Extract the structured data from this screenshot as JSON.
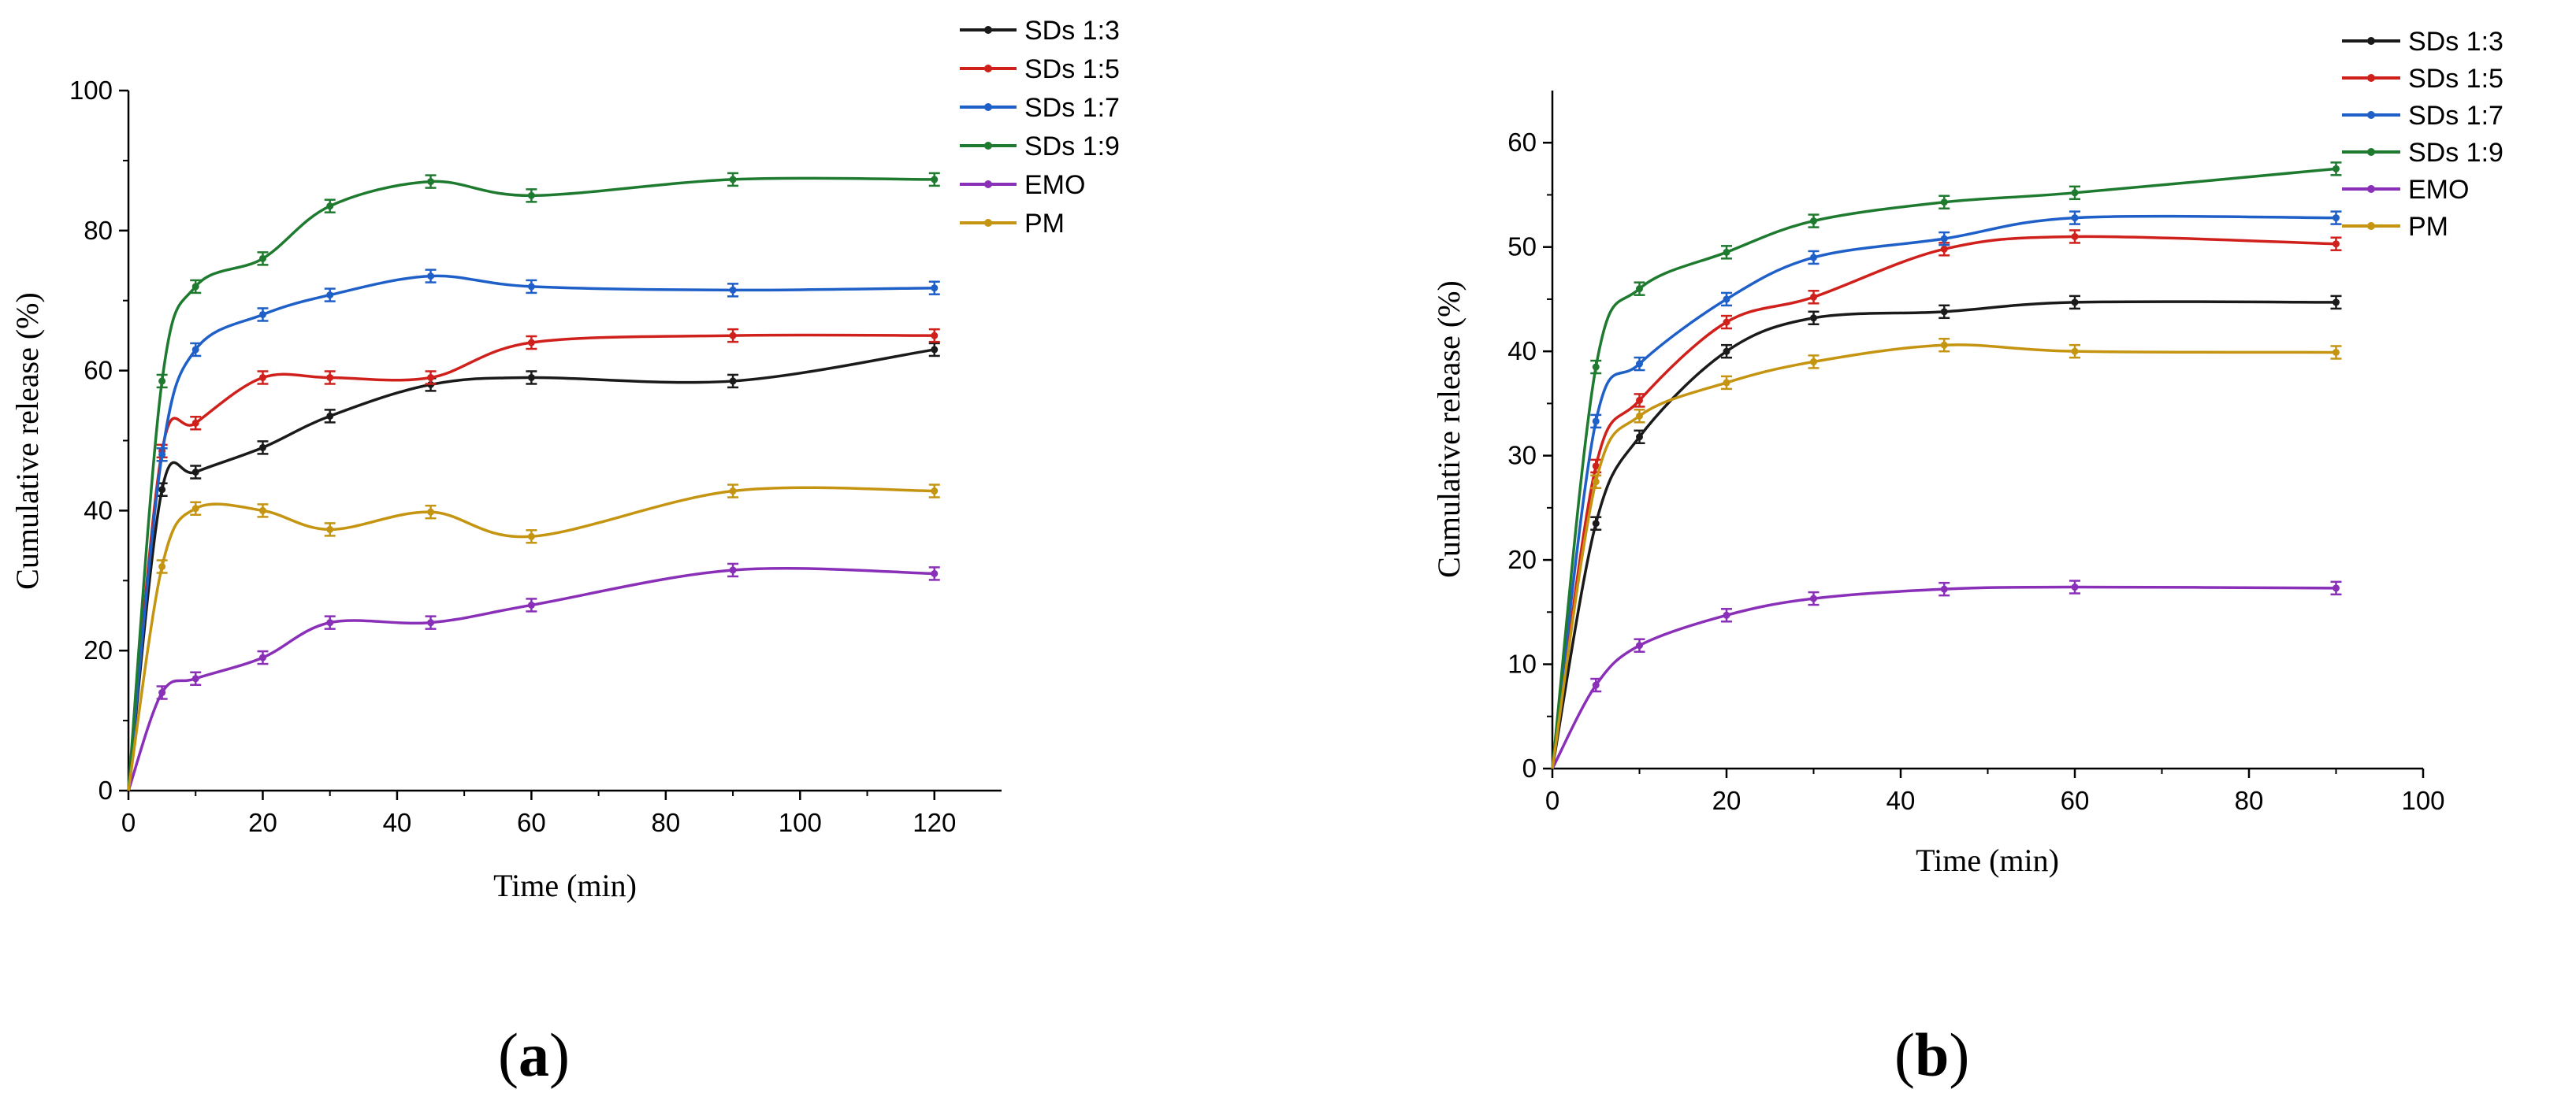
{
  "figure": {
    "colors": {
      "SDs 1:3": "#1a1a1a",
      "SDs 1:5": "#d0201c",
      "SDs 1:7": "#1f5fc8",
      "SDs 1:9": "#1e7a2e",
      "EMO": "#8a2fb8",
      "PM": "#c59512"
    }
  },
  "chart_data": [
    {
      "type": "line",
      "panel_label_open": "(",
      "panel_label_letter": "a",
      "panel_label_close": ")",
      "xlabel": "Time (min)",
      "ylabel": "Cumulative release (%)",
      "xlim": [
        0,
        130
      ],
      "ylim": [
        0,
        100
      ],
      "xticks": [
        0,
        20,
        40,
        60,
        80,
        100,
        120
      ],
      "yticks": [
        0,
        20,
        40,
        60,
        80,
        100
      ],
      "legend_position": "top-right",
      "x": [
        0,
        5,
        10,
        20,
        30,
        45,
        60,
        90,
        120
      ],
      "series": [
        {
          "name": "SDs 1:3",
          "values": [
            0,
            43,
            45.5,
            49,
            53.5,
            58,
            59,
            58.5,
            63
          ]
        },
        {
          "name": "SDs 1:5",
          "values": [
            0,
            48.5,
            52.5,
            59,
            59,
            59,
            64,
            65,
            65
          ]
        },
        {
          "name": "SDs 1:7",
          "values": [
            0,
            48,
            63,
            68,
            70.8,
            73.5,
            72,
            71.5,
            71.8
          ]
        },
        {
          "name": "SDs 1:9",
          "values": [
            0,
            58.5,
            72,
            76,
            83.5,
            87,
            85,
            87.3,
            87.3
          ]
        },
        {
          "name": "EMO",
          "values": [
            0,
            14,
            16,
            19,
            24,
            24,
            26.5,
            31.5,
            31
          ]
        },
        {
          "name": "PM",
          "values": [
            0,
            32,
            40.3,
            40,
            37.3,
            39.8,
            36.3,
            42.8,
            42.8
          ]
        }
      ]
    },
    {
      "type": "line",
      "panel_label_open": "(",
      "panel_label_letter": "b",
      "panel_label_close": ")",
      "xlabel": "Time (min)",
      "ylabel": "Cumulative release (%)",
      "xlim": [
        0,
        100
      ],
      "ylim": [
        0,
        65
      ],
      "xticks": [
        0,
        20,
        40,
        60,
        80,
        100
      ],
      "yticks": [
        0,
        10,
        20,
        30,
        40,
        50,
        60
      ],
      "legend_position": "top-right",
      "x": [
        0,
        5,
        10,
        20,
        30,
        45,
        60,
        90
      ],
      "series": [
        {
          "name": "SDs 1:3",
          "values": [
            0,
            23.5,
            31.8,
            40,
            43.2,
            43.8,
            44.7,
            44.7
          ]
        },
        {
          "name": "SDs 1:5",
          "values": [
            0,
            29,
            35.3,
            42.8,
            45.2,
            49.8,
            51,
            50.3
          ]
        },
        {
          "name": "SDs 1:7",
          "values": [
            0,
            33.3,
            38.8,
            45,
            49,
            50.8,
            52.8,
            52.8
          ]
        },
        {
          "name": "SDs 1:9",
          "values": [
            0,
            38.5,
            46,
            49.5,
            52.5,
            54.3,
            55.2,
            57.5
          ]
        },
        {
          "name": "EMO",
          "values": [
            0,
            8,
            11.8,
            14.7,
            16.3,
            17.2,
            17.4,
            17.3
          ]
        },
        {
          "name": "PM",
          "values": [
            0,
            27.5,
            33.8,
            37,
            39,
            40.6,
            40,
            39.9
          ]
        }
      ]
    }
  ]
}
